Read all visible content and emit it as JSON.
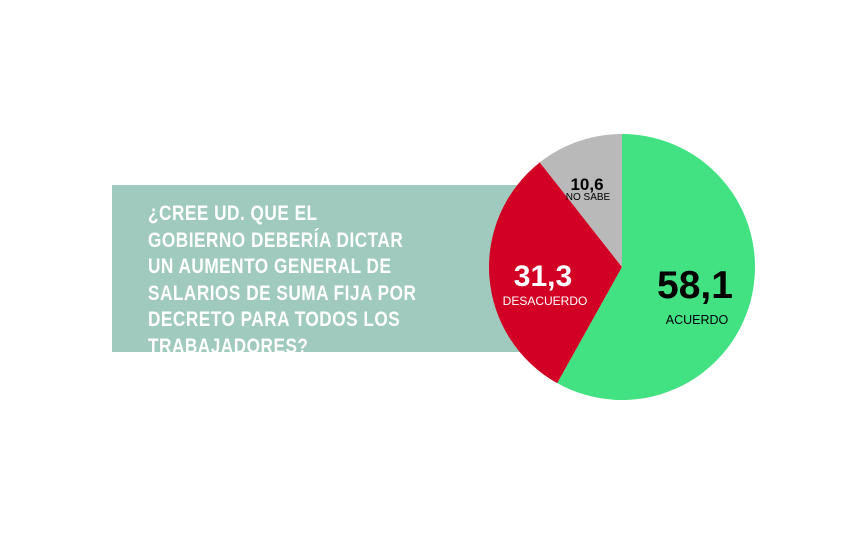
{
  "question": {
    "text": "¿CREE UD. QUE EL GOBIERNO DEBERÍA DICTAR UN AUMENTO GENERAL DE SALARIOS DE SUMA FIJA POR DECRETO PARA TODOS LOS TRABAJADORES?"
  },
  "colors": {
    "question_box": "#9fcabd",
    "acuerdo": "#42e182",
    "desacuerdo": "#d20024",
    "no_sabe": "#b9b9b9"
  },
  "chart_data": {
    "type": "pie",
    "slices": [
      {
        "label": "ACUERDO",
        "value": 58.1,
        "display": "58,1",
        "color": "#42e182"
      },
      {
        "label": "DESACUERDO",
        "value": 31.3,
        "display": "31,3",
        "color": "#d20024"
      },
      {
        "label": "NO SABE",
        "value": 10.6,
        "display": "10,6",
        "color": "#b9b9b9"
      }
    ]
  }
}
